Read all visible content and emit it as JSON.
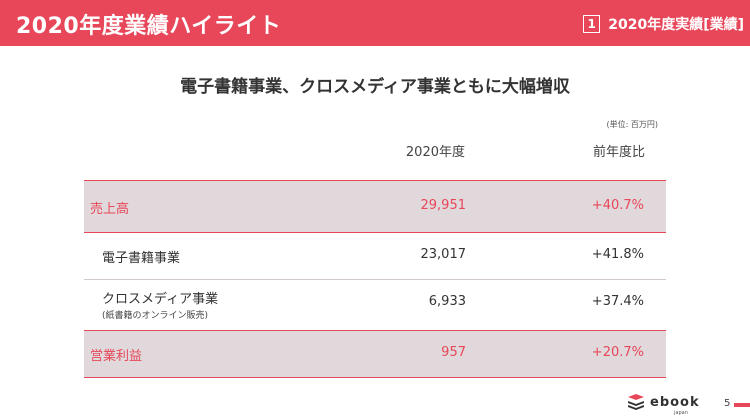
{
  "header": {
    "title": "2020年度業績ハイライト",
    "section_num": "1",
    "section_label": "2020年度実績[業績]"
  },
  "subtitle": "電子書籍事業、クロスメディア事業ともに大幅増収",
  "unit_note": "(単位: 百万円)",
  "table": {
    "columns": [
      "2020年度",
      "前年度比"
    ],
    "rows": [
      {
        "label": "売上高",
        "note": "",
        "value": "29,951",
        "yoy": "+40.7%"
      },
      {
        "label": "電子書籍事業",
        "note": "",
        "value": "23,017",
        "yoy": "+41.8%"
      },
      {
        "label": "クロスメディア事業",
        "note": "(紙書籍のオンライン販売)",
        "value": "6,933",
        "yoy": "+37.4%"
      },
      {
        "label": "営業利益",
        "note": "",
        "value": "957",
        "yoy": "+20.7%"
      }
    ]
  },
  "footer": {
    "logo_text": "ebook",
    "logo_sub": "japan",
    "page": "5"
  },
  "colors": {
    "accent": "#e8475a",
    "highlight_row": "#e0d8da",
    "text": "#333333"
  }
}
